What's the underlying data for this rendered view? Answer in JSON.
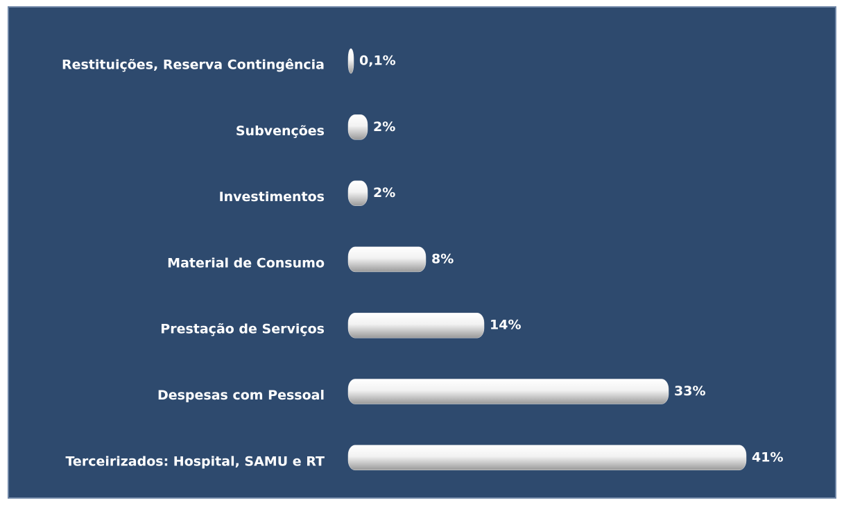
{
  "chart_data": {
    "type": "bar",
    "orientation": "horizontal",
    "categories": [
      "Restituições, Reserva Contingência",
      "Subvenções",
      "Investimentos",
      "Material de Consumo",
      "Prestação de Serviços",
      "Despesas com Pessoal",
      "Terceirizados: Hospital, SAMU e RT"
    ],
    "values": [
      0.1,
      2,
      2,
      8,
      14,
      33,
      41
    ],
    "value_labels": [
      "0,1%",
      "2%",
      "2%",
      "8%",
      "14%",
      "33%",
      "41%"
    ],
    "color": "#e8e8e8",
    "background": "#2e4a6e"
  }
}
